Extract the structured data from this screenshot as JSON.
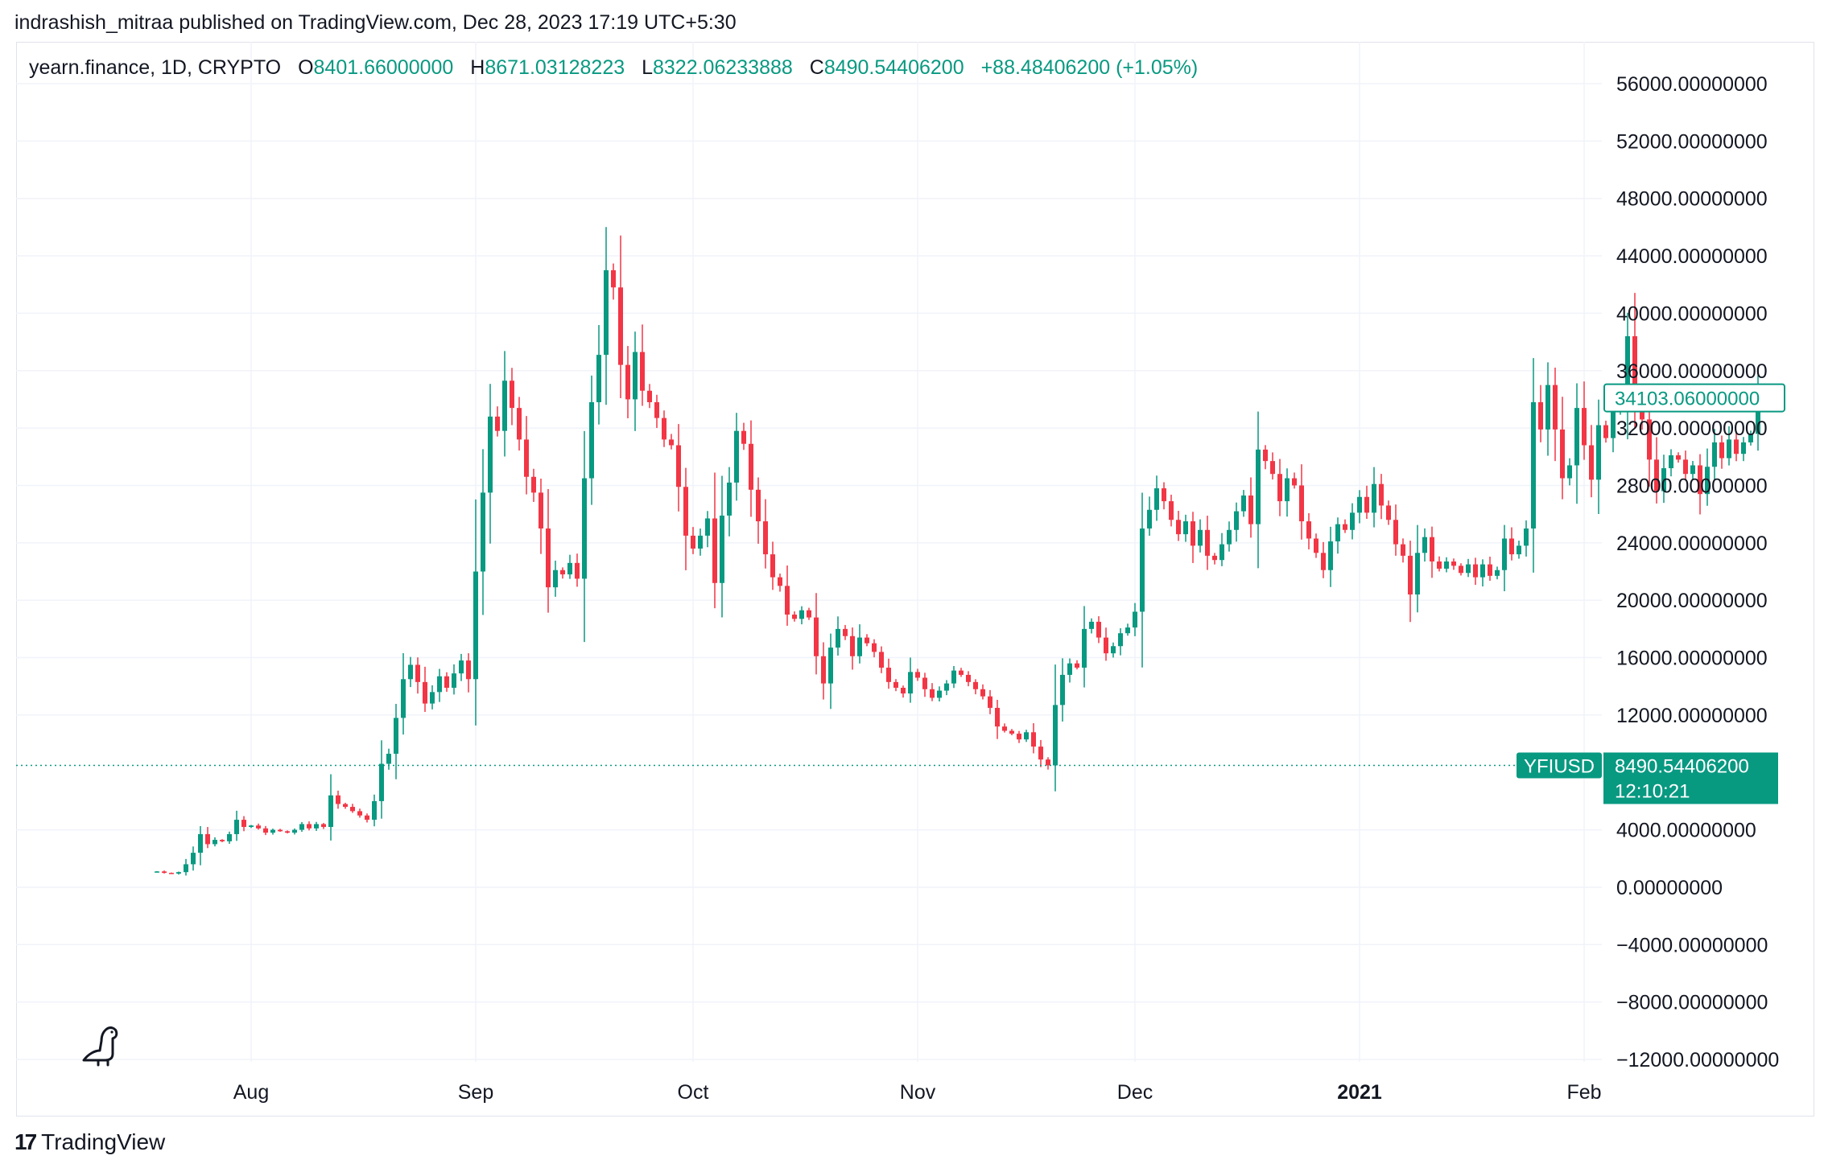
{
  "header": {
    "text": "indrashish_mitraa published on TradingView.com, Dec 28, 2023 17:19 UTC+5:30"
  },
  "legend": {
    "symbol": "yearn.finance, 1D, CRYPTO",
    "o_label": "O",
    "o_value": "8401.66000000",
    "h_label": "H",
    "h_value": "8671.03128223",
    "l_label": "L",
    "l_value": "8322.06233888",
    "c_label": "C",
    "c_value": "8490.54406200",
    "change": "+88.48406200 (+1.05%)"
  },
  "footer": {
    "logo_mark": "17",
    "brand": "TradingView"
  },
  "colors": {
    "up": "#089981",
    "down": "#f23645",
    "grid": "#f0f3fa",
    "text": "#131722"
  },
  "chart_data": {
    "type": "candlestick",
    "symbol": "YFIUSD",
    "x_labels": [
      {
        "label": "Aug",
        "day": 13
      },
      {
        "label": "Sep",
        "day": 44
      },
      {
        "label": "Oct",
        "day": 74
      },
      {
        "label": "Nov",
        "day": 105
      },
      {
        "label": "Dec",
        "day": 135
      },
      {
        "label": "2021",
        "day": 166,
        "bold": true
      },
      {
        "label": "Feb",
        "day": 197
      }
    ],
    "y_ticks": [
      "56000.00000000",
      "52000.00000000",
      "48000.00000000",
      "44000.00000000",
      "40000.00000000",
      "36000.00000000",
      "32000.00000000",
      "28000.00000000",
      "24000.00000000",
      "20000.00000000",
      "16000.00000000",
      "12000.00000000",
      "4000.00000000",
      "0.00000000",
      "−4000.00000000",
      "−8000.00000000",
      "−12000.00000000"
    ],
    "y_tick_values": [
      56000,
      52000,
      48000,
      44000,
      40000,
      36000,
      32000,
      28000,
      24000,
      20000,
      16000,
      12000,
      4000,
      0,
      -4000,
      -8000,
      -12000
    ],
    "ylim": [
      -12000,
      56000
    ],
    "last_price_label": "8490.54406200",
    "last_price_value": 8490.544062,
    "countdown": "12:10:21",
    "marker_price_label": "34103.06000000",
    "marker_price_value": 34103.06,
    "closes": [
      1100,
      1000,
      950,
      1050,
      1600,
      2400,
      3700,
      3000,
      3300,
      3200,
      3700,
      4700,
      4200,
      4300,
      4100,
      3800,
      4000,
      3900,
      3800,
      4000,
      4400,
      4100,
      4400,
      4200,
      6400,
      5800,
      5600,
      5300,
      5000,
      4700,
      6000,
      8600,
      9300,
      11800,
      14500,
      15500,
      14300,
      12800,
      13600,
      14700,
      13900,
      14900,
      15800,
      14500,
      22000,
      27500,
      32800,
      31800,
      35300,
      33400,
      31200,
      28600,
      27500,
      25000,
      20900,
      22100,
      21800,
      22600,
      21500,
      28500,
      33800,
      37100,
      43000,
      41800,
      36400,
      34000,
      37300,
      34600,
      33800,
      32700,
      31200,
      30800,
      27900,
      24500,
      23600,
      24500,
      25700,
      21200,
      25900,
      28200,
      31800,
      30900,
      27700,
      25500,
      23200,
      21600,
      21000,
      19000,
      18700,
      19300,
      18800,
      16100,
      14200,
      16700,
      18000,
      17500,
      16100,
      17400,
      17000,
      16400,
      15300,
      14300,
      13900,
      13500,
      15000,
      14600,
      13800,
      13200,
      13700,
      14200,
      15100,
      14800,
      14300,
      13800,
      13300,
      12500,
      11200,
      10900,
      10700,
      10300,
      10800,
      9800,
      8900,
      8490,
      12700,
      14800,
      15600,
      15300,
      18000,
      18500,
      17400,
      16300,
      16800,
      17700,
      18100,
      19200,
      25000,
      26300,
      27800,
      26900,
      25600,
      24600,
      25500,
      23800,
      24900,
      23100,
      22800,
      23900,
      24900,
      26200,
      27300,
      25300,
      30500,
      29700,
      28800,
      26900,
      28500,
      28000,
      25500,
      24300,
      23300,
      22100,
      24100,
      25300,
      24900,
      26100,
      27200,
      26100,
      28100,
      26600,
      25600,
      23900,
      23100,
      20400,
      23300,
      24400,
      22700,
      22200,
      22700,
      22400,
      21900,
      22500,
      21600,
      22500,
      21700,
      22100,
      24300,
      23200,
      23800,
      25000,
      33800,
      31900,
      35000,
      31900,
      28500,
      29400,
      33400,
      30800,
      28400,
      32200,
      31300,
      33400,
      34200,
      38400,
      33900,
      32600,
      29800,
      27600,
      29200,
      30100,
      29800,
      28800,
      29400,
      27400,
      29300,
      31000,
      29900,
      31200,
      30200,
      31000,
      31600,
      34103
    ]
  }
}
